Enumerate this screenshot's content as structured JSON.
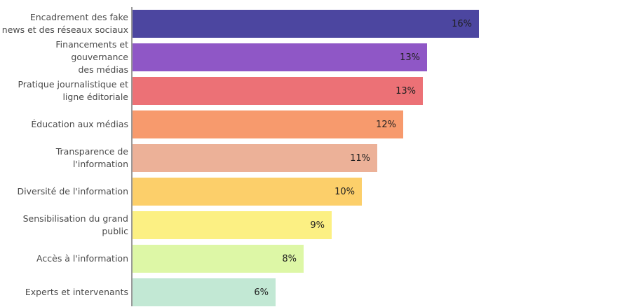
{
  "chart_data": {
    "type": "bar",
    "orientation": "horizontal",
    "title": "",
    "xlabel": "",
    "ylabel": "",
    "grid": false,
    "legend": false,
    "categories": [
      "Encadrement des fake\nnews et des réseaux sociaux",
      "Financements et gouvernance\ndes médias",
      "Pratique journalistique et\nligne éditoriale",
      "Éducation aux médias",
      "Transparence de l'information",
      "Diversité de l'information",
      "Sensibilisation du grand\npublic",
      "Accès à l'information",
      "Experts et intervenants"
    ],
    "values": [
      16,
      13,
      13,
      12,
      11,
      10,
      9,
      8,
      6
    ],
    "value_labels": [
      "16%",
      "13%",
      "13%",
      "12%",
      "11%",
      "10%",
      "9%",
      "8%",
      "6%"
    ],
    "estimated_precise_values": [
      16.0,
      13.6,
      13.4,
      12.5,
      11.3,
      10.6,
      9.2,
      7.9,
      6.6
    ],
    "xlim": [
      0,
      16
    ],
    "bar_colors": [
      "#4c46a0",
      "#8f57c6",
      "#ec7176",
      "#f79a6d",
      "#ecb198",
      "#fccf6a",
      "#fcf083",
      "#ddf7a6",
      "#c2e8d4"
    ],
    "colors": {
      "category_label": "#4a4a4a",
      "value_label": "#1f1f1f",
      "axis_line": "#9a9a9a",
      "background": "#ffffff"
    }
  }
}
